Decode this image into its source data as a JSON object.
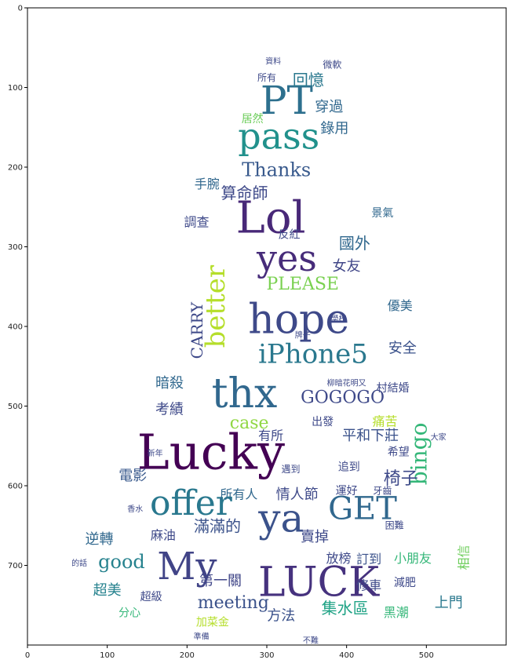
{
  "chart_data": {
    "type": "image",
    "title": "",
    "xlabel": "",
    "ylabel": "",
    "xlim": [
      0,
      600
    ],
    "ylim": [
      800,
      0
    ],
    "xticks": [
      0,
      100,
      200,
      300,
      400,
      500
    ],
    "yticks": [
      0,
      100,
      200,
      300,
      400,
      500,
      600,
      700
    ],
    "colormap": "viridis",
    "words": [
      {
        "text": "Lucky",
        "x": 230,
        "y": 563,
        "size": 62,
        "color": "#440154",
        "rot": 0
      },
      {
        "text": "Lol",
        "x": 305,
        "y": 268,
        "size": 56,
        "color": "#482878",
        "rot": 0
      },
      {
        "text": "hope",
        "x": 340,
        "y": 395,
        "size": 52,
        "color": "#3e4989",
        "rot": 0
      },
      {
        "text": "yes",
        "x": 325,
        "y": 318,
        "size": 46,
        "color": "#472c7a",
        "rot": 0
      },
      {
        "text": "thx",
        "x": 272,
        "y": 488,
        "size": 52,
        "color": "#31688e",
        "rot": 0
      },
      {
        "text": "PT",
        "x": 325,
        "y": 120,
        "size": 50,
        "color": "#2d708e",
        "rot": 0
      },
      {
        "text": "pass",
        "x": 315,
        "y": 165,
        "size": 46,
        "color": "#21918c",
        "rot": 0
      },
      {
        "text": "offer",
        "x": 205,
        "y": 625,
        "size": 44,
        "color": "#29788e",
        "rot": 0
      },
      {
        "text": "ya",
        "x": 318,
        "y": 645,
        "size": 50,
        "color": "#3b528b",
        "rot": 0
      },
      {
        "text": "GET",
        "x": 420,
        "y": 632,
        "size": 40,
        "color": "#31688e",
        "rot": 0
      },
      {
        "text": "My",
        "x": 200,
        "y": 705,
        "size": 48,
        "color": "#414487",
        "rot": 0
      },
      {
        "text": "LUCK",
        "x": 365,
        "y": 725,
        "size": 52,
        "color": "#46327e",
        "rot": 0
      },
      {
        "text": "iPhone5",
        "x": 358,
        "y": 437,
        "size": 34,
        "color": "#2a788e",
        "rot": 0
      },
      {
        "text": "better",
        "x": 238,
        "y": 375,
        "size": 34,
        "color": "#b5de2b",
        "rot": -90
      },
      {
        "text": "bingo",
        "x": 493,
        "y": 560,
        "size": 28,
        "color": "#35b779",
        "rot": -90
      },
      {
        "text": "GOGOGO",
        "x": 395,
        "y": 490,
        "size": 22,
        "color": "#3e4989",
        "rot": 0
      },
      {
        "text": "Thanks",
        "x": 312,
        "y": 205,
        "size": 24,
        "color": "#38598c",
        "rot": 0
      },
      {
        "text": "PLEASE",
        "x": 345,
        "y": 348,
        "size": 22,
        "color": "#7ad151",
        "rot": 0
      },
      {
        "text": "CARRY",
        "x": 214,
        "y": 405,
        "size": 20,
        "color": "#3e4989",
        "rot": -90
      },
      {
        "text": "meeting",
        "x": 258,
        "y": 748,
        "size": 22,
        "color": "#3b528b",
        "rot": 0
      },
      {
        "text": "good",
        "x": 118,
        "y": 697,
        "size": 24,
        "color": "#26828e",
        "rot": 0
      },
      {
        "text": "case",
        "x": 278,
        "y": 522,
        "size": 22,
        "color": "#90d743",
        "rot": 0
      },
      {
        "text": "回憶",
        "x": 352,
        "y": 92,
        "size": 20,
        "color": "#2a788e",
        "rot": 0
      },
      {
        "text": "穿過",
        "x": 378,
        "y": 125,
        "size": 18,
        "color": "#31688e",
        "rot": 0
      },
      {
        "text": "錄用",
        "x": 385,
        "y": 152,
        "size": 18,
        "color": "#31688e",
        "rot": 0
      },
      {
        "text": "算命師",
        "x": 272,
        "y": 234,
        "size": 20,
        "color": "#3e4989",
        "rot": 0
      },
      {
        "text": "國外",
        "x": 410,
        "y": 297,
        "size": 20,
        "color": "#31688e",
        "rot": 0
      },
      {
        "text": "女友",
        "x": 400,
        "y": 325,
        "size": 18,
        "color": "#404688",
        "rot": 0
      },
      {
        "text": "平和下莊",
        "x": 430,
        "y": 538,
        "size": 18,
        "color": "#3b528b",
        "rot": 0
      },
      {
        "text": "椅子",
        "x": 468,
        "y": 592,
        "size": 22,
        "color": "#3e4989",
        "rot": 0
      },
      {
        "text": "電影",
        "x": 132,
        "y": 588,
        "size": 18,
        "color": "#38598c",
        "rot": 0
      },
      {
        "text": "情人節",
        "x": 338,
        "y": 612,
        "size": 18,
        "color": "#3e4989",
        "rot": 0
      },
      {
        "text": "滿滿的",
        "x": 238,
        "y": 652,
        "size": 20,
        "color": "#3b528b",
        "rot": 0
      },
      {
        "text": "逆轉",
        "x": 90,
        "y": 668,
        "size": 18,
        "color": "#31688e",
        "rot": 0
      },
      {
        "text": "超美",
        "x": 100,
        "y": 732,
        "size": 18,
        "color": "#26828e",
        "rot": 0
      },
      {
        "text": "方法",
        "x": 318,
        "y": 764,
        "size": 18,
        "color": "#3b528b",
        "rot": 0
      },
      {
        "text": "集水區",
        "x": 398,
        "y": 755,
        "size": 20,
        "color": "#20a386",
        "rot": 0
      },
      {
        "text": "黑潮",
        "x": 462,
        "y": 760,
        "size": 16,
        "color": "#35b779",
        "rot": 0
      },
      {
        "text": "上門",
        "x": 528,
        "y": 748,
        "size": 18,
        "color": "#2a788e",
        "rot": 0
      },
      {
        "text": "相信",
        "x": 548,
        "y": 690,
        "size": 16,
        "color": "#6ccd5a",
        "rot": -90
      },
      {
        "text": "小朋友",
        "x": 483,
        "y": 692,
        "size": 16,
        "color": "#35b779",
        "rot": 0
      },
      {
        "text": "訂到",
        "x": 428,
        "y": 693,
        "size": 16,
        "color": "#3b528b",
        "rot": 0
      },
      {
        "text": "放榜",
        "x": 390,
        "y": 692,
        "size": 16,
        "color": "#3e4989",
        "rot": 0
      },
      {
        "text": "賣掉",
        "x": 360,
        "y": 665,
        "size": 18,
        "color": "#3e4989",
        "rot": 0
      },
      {
        "text": "麻油",
        "x": 170,
        "y": 663,
        "size": 16,
        "color": "#3e4989",
        "rot": 0
      },
      {
        "text": "第一關",
        "x": 242,
        "y": 720,
        "size": 18,
        "color": "#404688",
        "rot": 0
      },
      {
        "text": "有所",
        "x": 305,
        "y": 538,
        "size": 16,
        "color": "#3e4989",
        "rot": 0
      },
      {
        "text": "安全",
        "x": 470,
        "y": 428,
        "size": 18,
        "color": "#3b528b",
        "rot": 0
      },
      {
        "text": "暗殺",
        "x": 178,
        "y": 472,
        "size": 18,
        "color": "#31688e",
        "rot": 0
      },
      {
        "text": "考績",
        "x": 178,
        "y": 505,
        "size": 18,
        "color": "#3e4989",
        "rot": 0
      },
      {
        "text": "優美",
        "x": 467,
        "y": 375,
        "size": 16,
        "color": "#31688e",
        "rot": 0
      },
      {
        "text": "景氣",
        "x": 445,
        "y": 258,
        "size": 14,
        "color": "#31688e",
        "rot": 0
      },
      {
        "text": "手腕",
        "x": 225,
        "y": 222,
        "size": 16,
        "color": "#31688e",
        "rot": 0
      },
      {
        "text": "調查",
        "x": 212,
        "y": 270,
        "size": 16,
        "color": "#3e4989",
        "rot": 0
      },
      {
        "text": "痛苦",
        "x": 448,
        "y": 520,
        "size": 16,
        "color": "#b5de2b",
        "rot": 0
      },
      {
        "text": "出發",
        "x": 370,
        "y": 520,
        "size": 14,
        "color": "#3e4989",
        "rot": 0
      },
      {
        "text": "修車",
        "x": 428,
        "y": 726,
        "size": 16,
        "color": "#3e4989",
        "rot": 0
      },
      {
        "text": "所有人",
        "x": 265,
        "y": 612,
        "size": 16,
        "color": "#31688e",
        "rot": 0
      },
      {
        "text": "超級",
        "x": 155,
        "y": 740,
        "size": 14,
        "color": "#3e4989",
        "rot": 0
      },
      {
        "text": "分心",
        "x": 128,
        "y": 760,
        "size": 14,
        "color": "#35b779",
        "rot": 0
      },
      {
        "text": "加菜金",
        "x": 232,
        "y": 772,
        "size": 14,
        "color": "#b5de2b",
        "rot": 0
      },
      {
        "text": "減肥",
        "x": 473,
        "y": 722,
        "size": 14,
        "color": "#3e4989",
        "rot": 0
      },
      {
        "text": "希望",
        "x": 465,
        "y": 558,
        "size": 14,
        "color": "#3e4989",
        "rot": 0
      },
      {
        "text": "追到",
        "x": 403,
        "y": 577,
        "size": 14,
        "color": "#3e4989",
        "rot": 0
      },
      {
        "text": "運好",
        "x": 400,
        "y": 607,
        "size": 14,
        "color": "#3e4989",
        "rot": 0
      },
      {
        "text": "所有",
        "x": 300,
        "y": 88,
        "size": 12,
        "color": "#3e4989",
        "rot": 0
      },
      {
        "text": "資料",
        "x": 308,
        "y": 68,
        "size": 10,
        "color": "#3e4989",
        "rot": 0
      },
      {
        "text": "微軟",
        "x": 382,
        "y": 72,
        "size": 12,
        "color": "#3e4989",
        "rot": 0
      },
      {
        "text": "居然",
        "x": 282,
        "y": 140,
        "size": 14,
        "color": "#6ccd5a",
        "rot": 0
      },
      {
        "text": "反紅",
        "x": 328,
        "y": 285,
        "size": 14,
        "color": "#3e4989",
        "rot": 0
      },
      {
        "text": "香水",
        "x": 135,
        "y": 630,
        "size": 10,
        "color": "#3e4989",
        "rot": 0
      },
      {
        "text": "牙齒",
        "x": 445,
        "y": 607,
        "size": 12,
        "color": "#3e4989",
        "rot": 0
      },
      {
        "text": "的話",
        "x": 65,
        "y": 698,
        "size": 10,
        "color": "#3e4989",
        "rot": 0
      },
      {
        "text": "準備",
        "x": 218,
        "y": 790,
        "size": 10,
        "color": "#3e4989",
        "rot": 0
      },
      {
        "text": "不難",
        "x": 355,
        "y": 795,
        "size": 10,
        "color": "#3e4989",
        "rot": 0
      },
      {
        "text": "學校",
        "x": 390,
        "y": 391,
        "size": 10,
        "color": "#3e4989",
        "rot": 0
      },
      {
        "text": "新年",
        "x": 160,
        "y": 560,
        "size": 10,
        "color": "#3e4989",
        "rot": 0
      },
      {
        "text": "村結婚",
        "x": 458,
        "y": 478,
        "size": 14,
        "color": "#3e4989",
        "rot": 0
      },
      {
        "text": "柳暗花明又",
        "x": 400,
        "y": 472,
        "size": 10,
        "color": "#3e4989",
        "rot": 0
      },
      {
        "text": "遇到",
        "x": 330,
        "y": 580,
        "size": 12,
        "color": "#3e4989",
        "rot": 0
      },
      {
        "text": "困難",
        "x": 460,
        "y": 650,
        "size": 12,
        "color": "#3e4989",
        "rot": 0
      },
      {
        "text": "大家",
        "x": 515,
        "y": 540,
        "size": 10,
        "color": "#3e4989",
        "rot": 0
      },
      {
        "text": "牌子",
        "x": 345,
        "y": 412,
        "size": 10,
        "color": "#3e4989",
        "rot": 0
      }
    ]
  }
}
